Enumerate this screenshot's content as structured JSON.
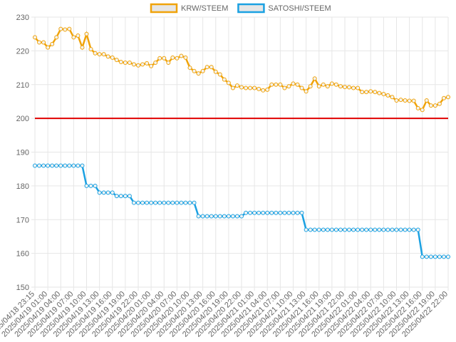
{
  "chart_data": {
    "type": "line",
    "categories": [
      "2025/04/18 23:15",
      null,
      null,
      "2025/04/19 01:00",
      null,
      null,
      "2025/04/19 04:00",
      null,
      null,
      "2025/04/19 07:00",
      null,
      null,
      "2025/04/19 10:00",
      null,
      null,
      "2025/04/19 13:00",
      null,
      null,
      "2025/04/19 16:00",
      null,
      null,
      "2025/04/19 19:00",
      null,
      null,
      "2025/04/19 22:00",
      null,
      null,
      "2025/04/20 01:00",
      null,
      null,
      "2025/04/20 04:00",
      null,
      null,
      "2025/04/20 07:00",
      null,
      null,
      "2025/04/20 10:00",
      null,
      null,
      "2025/04/20 13:00",
      null,
      null,
      "2025/04/20 16:00",
      null,
      null,
      "2025/04/20 19:00",
      null,
      null,
      "2025/04/20 22:00",
      null,
      null,
      "2025/04/21 01:00",
      null,
      null,
      "2025/04/21 04:00",
      null,
      null,
      "2025/04/21 07:00",
      null,
      null,
      "2025/04/21 10:00",
      null,
      null,
      "2025/04/21 13:00",
      null,
      null,
      "2025/04/21 16:00",
      null,
      null,
      "2025/04/21 19:00",
      null,
      null,
      "2025/04/21 22:00",
      null,
      null,
      "2025/04/22 01:00",
      null,
      null,
      "2025/04/22 04:00",
      null,
      null,
      "2025/04/22 07:00",
      null,
      null,
      "2025/04/22 10:00",
      null,
      null,
      "2025/04/22 13:00",
      null,
      null,
      "2025/04/22 16:00",
      null,
      null,
      "2025/04/22 19:00",
      null,
      null,
      "2025/04/22 22:00"
    ],
    "series": [
      {
        "name": "KRW/STEEM",
        "color": "#f0a30a",
        "values": [
          224,
          222.5,
          222.5,
          221,
          222,
          224,
          226.5,
          226.3,
          226.5,
          224,
          224.5,
          221,
          225,
          220.5,
          219.3,
          219,
          219,
          218.3,
          218,
          217.3,
          216.7,
          216.5,
          216.5,
          216,
          215.7,
          216,
          216.3,
          215.5,
          216.5,
          217.8,
          217.8,
          216.5,
          218,
          217.8,
          218.5,
          218,
          215,
          214,
          213.3,
          214,
          215.2,
          215.2,
          213.8,
          213,
          211.5,
          210.5,
          209,
          209.7,
          209.2,
          209,
          209,
          209,
          208.7,
          208.3,
          208.5,
          210,
          210,
          210,
          209,
          209.5,
          210.3,
          210,
          209,
          208,
          209.5,
          211.8,
          209.5,
          210,
          209.5,
          210.3,
          210,
          209.5,
          209.3,
          209.2,
          209,
          209,
          207.8,
          207.8,
          208,
          207.8,
          207.5,
          207.2,
          206.8,
          206.3,
          205.3,
          205.5,
          205.3,
          205.2,
          205.2,
          203,
          202.5,
          205.3,
          203.8,
          203.8,
          204.3,
          206,
          206.3
        ]
      },
      {
        "name": "SATOSHI/STEEM",
        "color": "#1ba1e2",
        "values": [
          186,
          186,
          186,
          186,
          186,
          186,
          186,
          186,
          186,
          186,
          186,
          186,
          180,
          180,
          180,
          178,
          178,
          178,
          178,
          177,
          177,
          177,
          177,
          175,
          175,
          175,
          175,
          175,
          175,
          175,
          175,
          175,
          175,
          175,
          175,
          175,
          175,
          175,
          171,
          171,
          171,
          171,
          171,
          171,
          171,
          171,
          171,
          171,
          171,
          172,
          172,
          172,
          172,
          172,
          172,
          172,
          172,
          172,
          172,
          172,
          172,
          172,
          172,
          167,
          167,
          167,
          167,
          167,
          167,
          167,
          167,
          167,
          167,
          167,
          167,
          167,
          167,
          167,
          167,
          167,
          167,
          167,
          167,
          167,
          167,
          167,
          167,
          167,
          167,
          167,
          159,
          159,
          159,
          159,
          159,
          159,
          159
        ]
      }
    ],
    "ylim": [
      150,
      230
    ],
    "yticks": [
      150,
      160,
      170,
      180,
      190,
      200,
      210,
      220,
      230
    ],
    "grid": true,
    "reference_line": {
      "value": 200,
      "color": "#e00000"
    },
    "legend": "top"
  }
}
